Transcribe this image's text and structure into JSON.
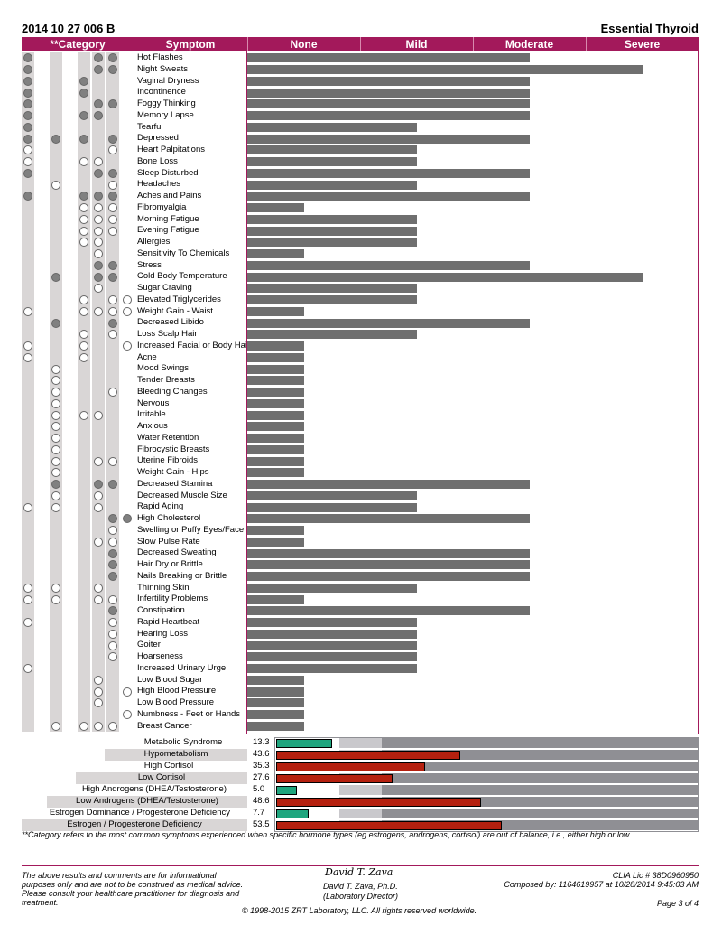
{
  "header": {
    "report_id": "2014 10 27 006 B",
    "panel_name": "Essential Thyroid"
  },
  "columns": {
    "category": "**Category",
    "symptom": "Symptom",
    "none": "None",
    "mild": "Mild",
    "moderate": "Moderate",
    "severe": "Severe"
  },
  "symptoms": [
    {
      "name": "Hot Flashes",
      "severity": 2.5,
      "marks": [
        "f",
        "",
        "",
        "f",
        "f",
        ""
      ]
    },
    {
      "name": "Night Sweats",
      "severity": 3.5,
      "marks": [
        "f",
        "",
        "",
        "f",
        "f",
        ""
      ]
    },
    {
      "name": "Vaginal Dryness",
      "severity": 2.5,
      "marks": [
        "f",
        "",
        "f",
        "",
        "",
        ""
      ]
    },
    {
      "name": "Incontinence",
      "severity": 2.5,
      "marks": [
        "f",
        "",
        "f",
        "",
        "",
        ""
      ]
    },
    {
      "name": "Foggy Thinking",
      "severity": 2.5,
      "marks": [
        "f",
        "",
        "",
        "f",
        "f",
        ""
      ]
    },
    {
      "name": "Memory Lapse",
      "severity": 2.5,
      "marks": [
        "f",
        "",
        "f",
        "f",
        "",
        ""
      ]
    },
    {
      "name": "Tearful",
      "severity": 1.5,
      "marks": [
        "f",
        "",
        "",
        "",
        "",
        ""
      ]
    },
    {
      "name": "Depressed",
      "severity": 2.5,
      "marks": [
        "f",
        "f",
        "f",
        "",
        "f",
        ""
      ]
    },
    {
      "name": "Heart Palpitations",
      "severity": 1.5,
      "marks": [
        "o",
        "",
        "",
        "",
        "o",
        ""
      ]
    },
    {
      "name": "Bone Loss",
      "severity": 1.5,
      "marks": [
        "o",
        "",
        "o",
        "o",
        "",
        ""
      ]
    },
    {
      "name": "Sleep Disturbed",
      "severity": 2.5,
      "marks": [
        "f",
        "",
        "",
        "f",
        "f",
        ""
      ]
    },
    {
      "name": "Headaches",
      "severity": 1.5,
      "marks": [
        "",
        "o",
        "",
        "",
        "o",
        ""
      ]
    },
    {
      "name": "Aches and Pains",
      "severity": 2.5,
      "marks": [
        "f",
        "",
        "f",
        "f",
        "f",
        ""
      ]
    },
    {
      "name": "Fibromyalgia",
      "severity": 0.5,
      "marks": [
        "",
        "",
        "o",
        "o",
        "o",
        ""
      ]
    },
    {
      "name": "Morning Fatigue",
      "severity": 1.5,
      "marks": [
        "",
        "",
        "o",
        "o",
        "o",
        ""
      ]
    },
    {
      "name": "Evening Fatigue",
      "severity": 1.5,
      "marks": [
        "",
        "",
        "o",
        "o",
        "o",
        ""
      ]
    },
    {
      "name": "Allergies",
      "severity": 1.5,
      "marks": [
        "",
        "",
        "o",
        "o",
        "",
        ""
      ]
    },
    {
      "name": "Sensitivity To Chemicals",
      "severity": 0.5,
      "marks": [
        "",
        "",
        "",
        "o",
        "",
        ""
      ]
    },
    {
      "name": "Stress",
      "severity": 2.5,
      "marks": [
        "",
        "",
        "",
        "f",
        "f",
        ""
      ]
    },
    {
      "name": "Cold Body Temperature",
      "severity": 3.5,
      "marks": [
        "",
        "f",
        "",
        "f",
        "f",
        ""
      ]
    },
    {
      "name": "Sugar Craving",
      "severity": 1.5,
      "marks": [
        "",
        "",
        "",
        "o",
        "",
        ""
      ]
    },
    {
      "name": "Elevated Triglycerides",
      "severity": 1.5,
      "marks": [
        "",
        "",
        "o",
        "",
        "o",
        "o"
      ]
    },
    {
      "name": "Weight Gain - Waist",
      "severity": 0.5,
      "marks": [
        "o",
        "",
        "o",
        "o",
        "o",
        "o"
      ]
    },
    {
      "name": "Decreased Libido",
      "severity": 2.5,
      "marks": [
        "",
        "f",
        "",
        "",
        "f",
        ""
      ]
    },
    {
      "name": "Loss Scalp Hair",
      "severity": 1.5,
      "marks": [
        "",
        "",
        "o",
        "",
        "o",
        ""
      ]
    },
    {
      "name": "Increased Facial or Body Hair",
      "severity": 0.5,
      "marks": [
        "o",
        "",
        "o",
        "",
        "",
        "o"
      ]
    },
    {
      "name": "Acne",
      "severity": 0.5,
      "marks": [
        "o",
        "",
        "o",
        "",
        "",
        ""
      ]
    },
    {
      "name": "Mood Swings",
      "severity": 0.5,
      "marks": [
        "",
        "o",
        "",
        "",
        "",
        ""
      ]
    },
    {
      "name": "Tender Breasts",
      "severity": 0.5,
      "marks": [
        "",
        "o",
        "",
        "",
        "",
        ""
      ]
    },
    {
      "name": "Bleeding Changes",
      "severity": 0.5,
      "marks": [
        "",
        "o",
        "",
        "",
        "o",
        ""
      ]
    },
    {
      "name": "Nervous",
      "severity": 0.5,
      "marks": [
        "",
        "o",
        "",
        "",
        "",
        ""
      ]
    },
    {
      "name": "Irritable",
      "severity": 0.5,
      "marks": [
        "",
        "o",
        "o",
        "o",
        "",
        ""
      ]
    },
    {
      "name": "Anxious",
      "severity": 0.5,
      "marks": [
        "",
        "o",
        "",
        "",
        "",
        ""
      ]
    },
    {
      "name": "Water Retention",
      "severity": 0.5,
      "marks": [
        "",
        "o",
        "",
        "",
        "",
        ""
      ]
    },
    {
      "name": "Fibrocystic Breasts",
      "severity": 0.5,
      "marks": [
        "",
        "o",
        "",
        "",
        "",
        ""
      ]
    },
    {
      "name": "Uterine Fibroids",
      "severity": 0.5,
      "marks": [
        "",
        "o",
        "",
        "o",
        "o",
        ""
      ]
    },
    {
      "name": "Weight Gain - Hips",
      "severity": 0.5,
      "marks": [
        "",
        "o",
        "",
        "",
        "",
        ""
      ]
    },
    {
      "name": "Decreased Stamina",
      "severity": 2.5,
      "marks": [
        "",
        "f",
        "",
        "f",
        "f",
        ""
      ]
    },
    {
      "name": "Decreased Muscle Size",
      "severity": 1.5,
      "marks": [
        "",
        "o",
        "",
        "o",
        "",
        ""
      ]
    },
    {
      "name": "Rapid Aging",
      "severity": 1.5,
      "marks": [
        "o",
        "o",
        "",
        "o",
        "",
        ""
      ]
    },
    {
      "name": "High Cholesterol",
      "severity": 2.5,
      "marks": [
        "",
        "",
        "",
        "",
        "f",
        "f"
      ]
    },
    {
      "name": "Swelling or Puffy Eyes/Face",
      "severity": 0.5,
      "marks": [
        "",
        "",
        "",
        "",
        "o",
        ""
      ]
    },
    {
      "name": "Slow Pulse Rate",
      "severity": 0.5,
      "marks": [
        "",
        "",
        "",
        "o",
        "o",
        ""
      ]
    },
    {
      "name": "Decreased Sweating",
      "severity": 2.5,
      "marks": [
        "",
        "",
        "",
        "",
        "f",
        ""
      ]
    },
    {
      "name": "Hair Dry or Brittle",
      "severity": 2.5,
      "marks": [
        "",
        "",
        "",
        "",
        "f",
        ""
      ]
    },
    {
      "name": "Nails Breaking or Brittle",
      "severity": 2.5,
      "marks": [
        "",
        "",
        "",
        "",
        "f",
        ""
      ]
    },
    {
      "name": "Thinning Skin",
      "severity": 1.5,
      "marks": [
        "o",
        "o",
        "",
        "o",
        "",
        ""
      ]
    },
    {
      "name": "Infertility Problems",
      "severity": 0.5,
      "marks": [
        "o",
        "o",
        "",
        "o",
        "o",
        ""
      ]
    },
    {
      "name": "Constipation",
      "severity": 2.5,
      "marks": [
        "",
        "",
        "",
        "",
        "f",
        ""
      ]
    },
    {
      "name": "Rapid Heartbeat",
      "severity": 1.5,
      "marks": [
        "o",
        "",
        "",
        "",
        "o",
        ""
      ]
    },
    {
      "name": "Hearing Loss",
      "severity": 1.5,
      "marks": [
        "",
        "",
        "",
        "",
        "o",
        ""
      ]
    },
    {
      "name": "Goiter",
      "severity": 1.5,
      "marks": [
        "",
        "",
        "",
        "",
        "o",
        ""
      ]
    },
    {
      "name": "Hoarseness",
      "severity": 1.5,
      "marks": [
        "",
        "",
        "",
        "",
        "o",
        ""
      ]
    },
    {
      "name": "Increased Urinary Urge",
      "severity": 1.5,
      "marks": [
        "o",
        "",
        "",
        "",
        "",
        ""
      ]
    },
    {
      "name": "Low Blood Sugar",
      "severity": 0.5,
      "marks": [
        "",
        "",
        "",
        "o",
        "",
        ""
      ]
    },
    {
      "name": "High Blood Pressure",
      "severity": 0.5,
      "marks": [
        "",
        "",
        "",
        "o",
        "",
        "o"
      ]
    },
    {
      "name": "Low Blood Pressure",
      "severity": 0.5,
      "marks": [
        "",
        "",
        "",
        "o",
        "",
        ""
      ]
    },
    {
      "name": "Numbness - Feet or Hands",
      "severity": 0.5,
      "marks": [
        "",
        "",
        "",
        "",
        "",
        "o"
      ]
    },
    {
      "name": "Breast Cancer",
      "severity": 0.5,
      "marks": [
        "",
        "o",
        "o",
        "o",
        "o",
        ""
      ]
    }
  ],
  "categories": [
    {
      "label": "Metabolic Syndrome",
      "value": "13.3",
      "score": 13.3,
      "color": "#1fa57e"
    },
    {
      "label": "Hypometabolism",
      "value": "43.6",
      "score": 43.6,
      "color": "#b5200f"
    },
    {
      "label": "High Cortisol",
      "value": "35.3",
      "score": 35.3,
      "color": "#b5200f"
    },
    {
      "label": "Low Cortisol",
      "value": "27.6",
      "score": 27.6,
      "color": "#b5200f"
    },
    {
      "label": "High Androgens (DHEA/Testosterone)",
      "value": "5.0",
      "score": 5.0,
      "color": "#1fa57e"
    },
    {
      "label": "Low Androgens (DHEA/Testosterone)",
      "value": "48.6",
      "score": 48.6,
      "color": "#b5200f"
    },
    {
      "label": "Estrogen Dominance / Progesterone Deficiency",
      "value": "7.7",
      "score": 7.7,
      "color": "#1fa57e"
    },
    {
      "label": "Estrogen / Progesterone Deficiency",
      "value": "53.5",
      "score": 53.5,
      "color": "#b5200f"
    }
  ],
  "footnote": "**Category refers to the most common symptoms experienced when specific hormone types (eg estrogens, androgens, cortisol) are out of balance, i.e., either high or low.",
  "footer": {
    "disclaimer_1": "The above results and comments are for informational",
    "disclaimer_2": "purposes only and are not to be construed as medical advice.",
    "disclaimer_3": "Please consult your healthcare practitioner for diagnosis and",
    "disclaimer_4": "treatment.",
    "signature": "David T. Zava",
    "director_name": "David T. Zava, Ph.D.",
    "director_title": "(Laboratory Director)",
    "clia": "CLIA Lic # 38D0960950",
    "composed": "Composed by:   1164619957  at  10/28/2014 9:45:03 AM",
    "page": "Page 3 of 4",
    "copyright": "© 1998-2015 ZRT Laboratory, LLC. All rights reserved worldwide."
  }
}
